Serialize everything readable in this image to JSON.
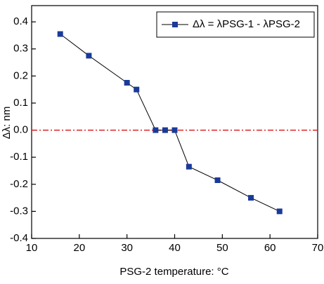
{
  "chart_data": {
    "type": "line",
    "x_label": "PSG-2 temperature: °C",
    "y_label": "Δλ: nm",
    "series": [
      {
        "name": "Δλ = λPSG-1 - λPSG-2",
        "color": "#1a3a9a",
        "x": [
          16,
          22,
          30,
          32,
          36,
          38,
          40,
          43,
          49,
          56,
          62
        ],
        "values": [
          0.355,
          0.275,
          0.175,
          0.15,
          0,
          0,
          0,
          -0.135,
          -0.185,
          -0.25,
          -0.3
        ]
      }
    ],
    "reference_line": {
      "y": 0,
      "color": "#e02020"
    },
    "xlim": [
      10,
      70
    ],
    "xticks": [
      10,
      20,
      30,
      40,
      50,
      60,
      70
    ],
    "ylim": [
      -0.4,
      0.46
    ],
    "yticks": [
      -0.4,
      -0.3,
      -0.2,
      -0.1,
      {
        "value": 0,
        "label": "0.0"
      },
      0.1,
      0.2,
      0.3,
      0.4
    ],
    "legend": "upper right"
  }
}
